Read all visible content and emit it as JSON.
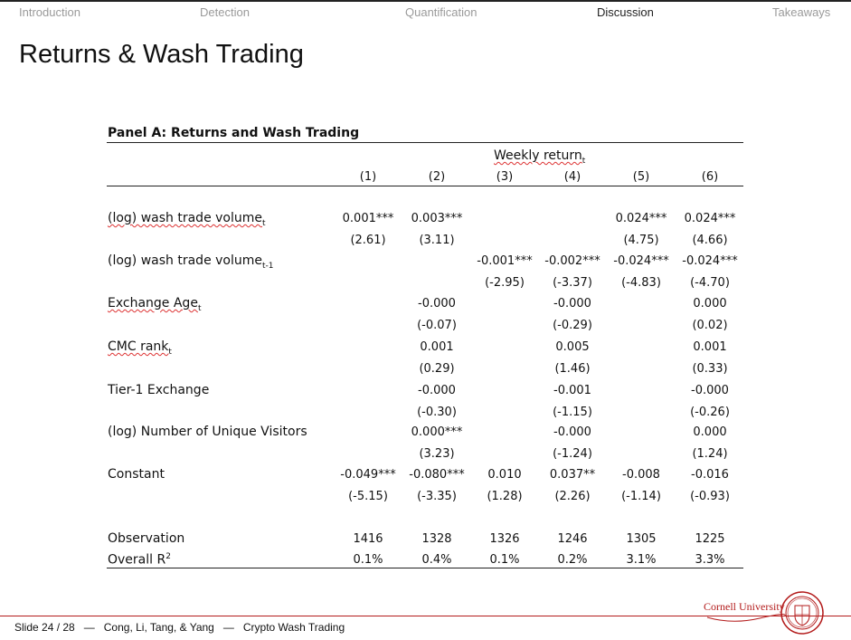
{
  "nav": {
    "items": [
      {
        "label": "Introduction",
        "active": false
      },
      {
        "label": "Detection",
        "active": false
      },
      {
        "label": "Quantification",
        "active": false
      },
      {
        "label": "Discussion",
        "active": true
      },
      {
        "label": "Takeaways",
        "active": false
      }
    ]
  },
  "slide": {
    "title": "Returns & Wash Trading"
  },
  "table": {
    "panel_title": "Panel A: Returns and Wash Trading",
    "group_header": {
      "text": "Weekly return",
      "sub": "t"
    },
    "columns": [
      "(1)",
      "(2)",
      "(3)",
      "(4)",
      "(5)",
      "(6)"
    ],
    "rows": [
      {
        "label": "(log) wash trade volume",
        "sub": "t",
        "coef": [
          "0.001***",
          "0.003***",
          "",
          "",
          "0.024***",
          "0.024***"
        ],
        "tstat": [
          "(2.61)",
          "(3.11)",
          "",
          "",
          "(4.75)",
          "(4.66)"
        ]
      },
      {
        "label": "(log) wash trade volume",
        "sub": "t-1",
        "coef": [
          "",
          "",
          "-0.001***",
          "-0.002***",
          "-0.024***",
          "-0.024***"
        ],
        "tstat": [
          "",
          "",
          "(-2.95)",
          "(-3.37)",
          "(-4.83)",
          "(-4.70)"
        ]
      },
      {
        "label": "Exchange Age",
        "sub": "t",
        "coef": [
          "",
          "-0.000",
          "",
          "-0.000",
          "",
          "0.000"
        ],
        "tstat": [
          "",
          "(-0.07)",
          "",
          "(-0.29)",
          "",
          "(0.02)"
        ]
      },
      {
        "label": "CMC rank",
        "sub": "t",
        "coef": [
          "",
          "0.001",
          "",
          "0.005",
          "",
          "0.001"
        ],
        "tstat": [
          "",
          "(0.29)",
          "",
          "(1.46)",
          "",
          "(0.33)"
        ]
      },
      {
        "label": "Tier-1 Exchange",
        "sub": "",
        "coef": [
          "",
          "-0.000",
          "",
          "-0.001",
          "",
          "-0.000"
        ],
        "tstat": [
          "",
          "(-0.30)",
          "",
          "(-1.15)",
          "",
          "(-0.26)"
        ]
      },
      {
        "label": "(log) Number of Unique Visitors",
        "sub": "",
        "coef": [
          "",
          "0.000***",
          "",
          "-0.000",
          "",
          "0.000"
        ],
        "tstat": [
          "",
          "(3.23)",
          "",
          "(-1.24)",
          "",
          "(1.24)"
        ]
      },
      {
        "label": "Constant",
        "sub": "",
        "coef": [
          "-0.049***",
          "-0.080***",
          "0.010",
          "0.037**",
          "-0.008",
          "-0.016"
        ],
        "tstat": [
          "(-5.15)",
          "(-3.35)",
          "(1.28)",
          "(2.26)",
          "(-1.14)",
          "(-0.93)"
        ]
      }
    ],
    "summary": [
      {
        "label": "Observation",
        "values": [
          "1416",
          "1328",
          "1326",
          "1246",
          "1305",
          "1225"
        ]
      },
      {
        "label": "Overall R",
        "sup": "2",
        "values": [
          "0.1%",
          "0.4%",
          "0.1%",
          "0.2%",
          "3.1%",
          "3.3%"
        ]
      }
    ]
  },
  "footer": {
    "slide_number": "Slide 24 / 28",
    "separator": "—",
    "authors": "Cong, Li, Tang, & Yang",
    "talk_title": "Crypto Wash Trading",
    "logo_text": "Cornell University"
  },
  "colors": {
    "accent": "#b31b1b",
    "nav_inactive": "#9a9a9a",
    "nav_active": "#222222"
  }
}
